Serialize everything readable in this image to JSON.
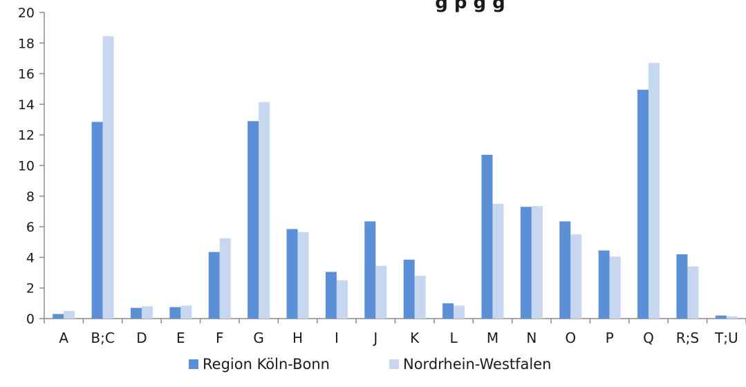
{
  "chart_data": {
    "type": "bar",
    "title": "... ig p ... g ... g",
    "title_visible_fragment": "g p    g        g",
    "xlabel": "",
    "ylabel": "",
    "ylim": [
      0,
      20
    ],
    "yticks": [
      0,
      2,
      4,
      6,
      8,
      10,
      12,
      14,
      16,
      18,
      20
    ],
    "grid": false,
    "legend_position": "bottom",
    "categories": [
      "A",
      "B;C",
      "D",
      "E",
      "F",
      "G",
      "H",
      "I",
      "J",
      "K",
      "L",
      "M",
      "N",
      "O",
      "P",
      "Q",
      "R;S",
      "T;U"
    ],
    "series": [
      {
        "name": "Region Köln-Bonn",
        "color": "#5b8fd6",
        "values": [
          0.3,
          12.85,
          0.7,
          0.75,
          4.35,
          12.9,
          5.85,
          3.05,
          6.35,
          3.85,
          1.0,
          10.7,
          7.3,
          6.35,
          4.45,
          14.95,
          4.2,
          0.2
        ]
      },
      {
        "name": "Nordrhein-Westfalen",
        "color": "#c6d7ef",
        "values": [
          0.5,
          18.45,
          0.8,
          0.85,
          5.25,
          14.15,
          5.65,
          2.5,
          3.45,
          2.8,
          0.85,
          7.5,
          7.35,
          5.5,
          4.05,
          16.7,
          3.4,
          0.15
        ]
      }
    ]
  }
}
